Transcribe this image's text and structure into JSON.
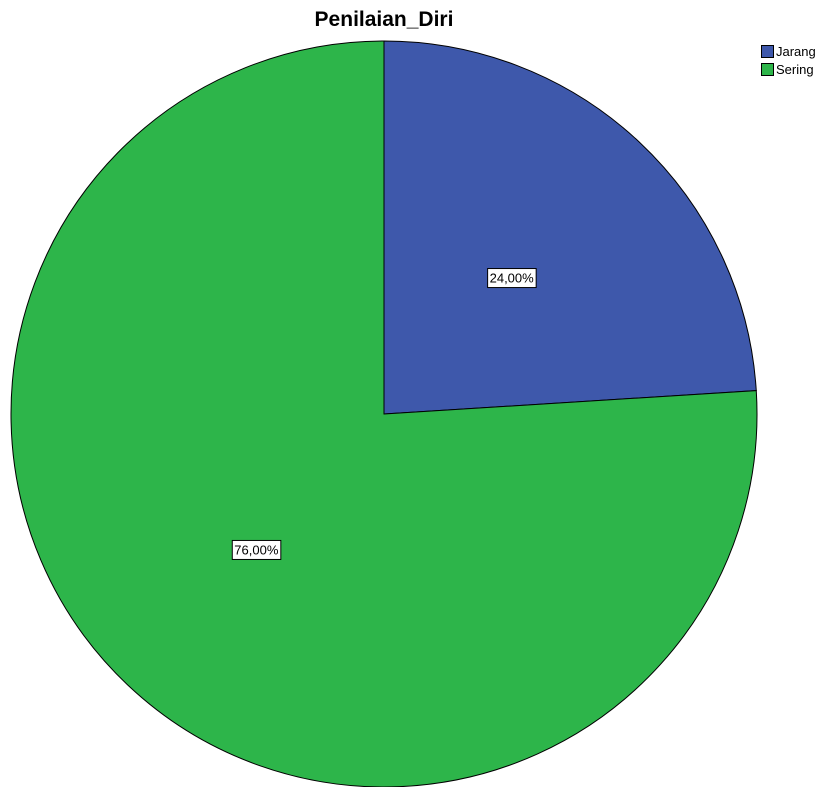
{
  "chart_data": {
    "type": "pie",
    "title": "Penilaian_Diri",
    "legend_position": "top-right",
    "slices": [
      {
        "label": "Jarang",
        "value": 24.0,
        "display": "24,00%",
        "color": "#3e58ab"
      },
      {
        "label": "Sering",
        "value": 76.0,
        "display": "76,00%",
        "color": "#2db54a"
      }
    ],
    "start_angle_deg": 0,
    "direction": "clockwise"
  }
}
